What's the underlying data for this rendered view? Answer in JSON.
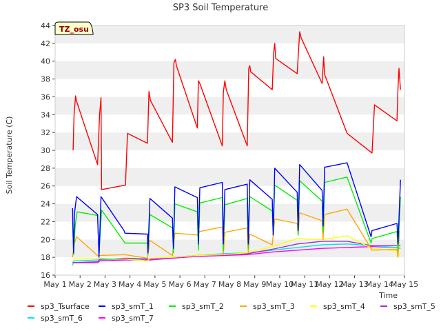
{
  "chart_data": {
    "type": "line",
    "title": "SP3 Soil Temperature",
    "xlabel": "Time",
    "ylabel": "Soil Temperature (C)",
    "xlim": [
      1,
      15
    ],
    "ylim": [
      16,
      44
    ],
    "x_ticks": [
      {
        "value": 1,
        "label": "May 1"
      },
      {
        "value": 2,
        "label": "May 2"
      },
      {
        "value": 3,
        "label": "May 3"
      },
      {
        "value": 4,
        "label": "May 4"
      },
      {
        "value": 5,
        "label": "May 5"
      },
      {
        "value": 6,
        "label": "May 6"
      },
      {
        "value": 7,
        "label": "May 7"
      },
      {
        "value": 8,
        "label": "May 8"
      },
      {
        "value": 9,
        "label": "May 9"
      },
      {
        "value": 10,
        "label": "May 10"
      },
      {
        "value": 11,
        "label": "May 11"
      },
      {
        "value": 12,
        "label": "May 12"
      },
      {
        "value": 13,
        "label": "May 13"
      },
      {
        "value": 14,
        "label": "May 14"
      },
      {
        "value": 15,
        "label": "May 15"
      }
    ],
    "y_ticks": [
      16,
      18,
      20,
      22,
      24,
      26,
      28,
      30,
      32,
      34,
      36,
      38,
      40,
      42,
      44
    ],
    "grid": "horizontal bands",
    "badge": "TZ_osu",
    "legend_position": "bottom",
    "series": [
      {
        "name": "sp3_Tsurface",
        "color": "#ff0000",
        "points": [
          [
            1.72,
            30.0
          ],
          [
            1.76,
            34.0
          ],
          [
            1.82,
            36.1
          ],
          [
            1.86,
            35.5
          ],
          [
            2.7,
            28.4
          ],
          [
            2.78,
            34.0
          ],
          [
            2.84,
            35.9
          ],
          [
            2.86,
            25.6
          ],
          [
            3.82,
            26.1
          ],
          [
            3.9,
            31.9
          ],
          [
            4.7,
            30.8
          ],
          [
            4.76,
            36.6
          ],
          [
            4.82,
            35.6
          ],
          [
            5.7,
            30.9
          ],
          [
            5.76,
            39.8
          ],
          [
            5.82,
            40.2
          ],
          [
            5.86,
            39.5
          ],
          [
            6.7,
            32.5
          ],
          [
            6.74,
            37.8
          ],
          [
            6.8,
            37.5
          ],
          [
            7.7,
            30.5
          ],
          [
            7.74,
            36.5
          ],
          [
            7.8,
            37.8
          ],
          [
            7.86,
            36.8
          ],
          [
            8.7,
            30.5
          ],
          [
            8.76,
            39.2
          ],
          [
            8.8,
            39.5
          ],
          [
            8.84,
            38.8
          ],
          [
            9.7,
            36.8
          ],
          [
            9.76,
            41.0
          ],
          [
            9.8,
            42.0
          ],
          [
            9.84,
            40.3
          ],
          [
            10.7,
            38.6
          ],
          [
            10.76,
            41.5
          ],
          [
            10.8,
            43.3
          ],
          [
            10.86,
            42.6
          ],
          [
            11.7,
            37.5
          ],
          [
            11.76,
            40.5
          ],
          [
            11.8,
            38.5
          ],
          [
            12.7,
            31.9
          ],
          [
            13.7,
            29.7
          ],
          [
            13.8,
            35.1
          ],
          [
            14.7,
            33.3
          ],
          [
            14.74,
            37.0
          ],
          [
            14.78,
            39.2
          ],
          [
            14.84,
            36.8
          ]
        ]
      },
      {
        "name": "sp3_smT_1",
        "color": "#0000ff",
        "points": [
          [
            1.7,
            23.5
          ],
          [
            1.74,
            18.5
          ],
          [
            1.78,
            23.0
          ],
          [
            1.86,
            24.8
          ],
          [
            2.7,
            22.8
          ],
          [
            2.76,
            18.0
          ],
          [
            2.84,
            24.8
          ],
          [
            3.76,
            21.0
          ],
          [
            3.8,
            20.7
          ],
          [
            4.7,
            20.6
          ],
          [
            4.72,
            18.5
          ],
          [
            4.8,
            24.6
          ],
          [
            5.7,
            22.4
          ],
          [
            5.74,
            19.0
          ],
          [
            5.8,
            25.9
          ],
          [
            6.7,
            24.7
          ],
          [
            6.74,
            19.5
          ],
          [
            6.8,
            25.8
          ],
          [
            7.7,
            26.4
          ],
          [
            7.74,
            19.5
          ],
          [
            7.8,
            25.6
          ],
          [
            8.7,
            26.2
          ],
          [
            8.74,
            19.5
          ],
          [
            8.8,
            26.7
          ],
          [
            9.7,
            24.5
          ],
          [
            9.74,
            20.5
          ],
          [
            9.8,
            28.0
          ],
          [
            10.7,
            25.3
          ],
          [
            10.74,
            21.0
          ],
          [
            10.8,
            28.4
          ],
          [
            11.7,
            25.5
          ],
          [
            11.74,
            21.5
          ],
          [
            11.8,
            28.1
          ],
          [
            12.7,
            28.6
          ],
          [
            13.66,
            20.3
          ],
          [
            13.7,
            21.0
          ],
          [
            14.7,
            21.8
          ],
          [
            14.74,
            19.5
          ],
          [
            14.84,
            26.7
          ]
        ]
      },
      {
        "name": "sp3_smT_2",
        "color": "#00ee00",
        "points": [
          [
            1.7,
            22.0
          ],
          [
            1.74,
            18.3
          ],
          [
            1.8,
            21.5
          ],
          [
            1.88,
            23.1
          ],
          [
            2.7,
            22.7
          ],
          [
            2.76,
            18.3
          ],
          [
            2.86,
            23.3
          ],
          [
            3.8,
            19.6
          ],
          [
            4.7,
            19.6
          ],
          [
            4.72,
            18.3
          ],
          [
            4.8,
            22.8
          ],
          [
            5.7,
            21.3
          ],
          [
            5.74,
            18.5
          ],
          [
            5.8,
            24.0
          ],
          [
            6.7,
            23.1
          ],
          [
            6.74,
            18.8
          ],
          [
            6.8,
            24.1
          ],
          [
            7.7,
            24.7
          ],
          [
            7.74,
            18.8
          ],
          [
            7.8,
            23.9
          ],
          [
            8.7,
            24.6
          ],
          [
            8.74,
            19.0
          ],
          [
            8.8,
            24.8
          ],
          [
            9.7,
            23.2
          ],
          [
            9.74,
            20.5
          ],
          [
            9.8,
            26.1
          ],
          [
            10.7,
            24.4
          ],
          [
            10.74,
            20.5
          ],
          [
            10.8,
            26.6
          ],
          [
            11.7,
            24.3
          ],
          [
            11.74,
            20.8
          ],
          [
            11.8,
            26.4
          ],
          [
            12.7,
            27.0
          ],
          [
            13.66,
            19.6
          ],
          [
            13.7,
            20.1
          ],
          [
            14.7,
            20.9
          ],
          [
            14.74,
            18.8
          ],
          [
            14.84,
            24.8
          ]
        ]
      },
      {
        "name": "sp3_smT_3",
        "color": "#ffa500",
        "points": [
          [
            1.7,
            18.0
          ],
          [
            1.76,
            19.5
          ],
          [
            1.86,
            20.3
          ],
          [
            2.7,
            18.2
          ],
          [
            3.8,
            18.3
          ],
          [
            4.7,
            17.9
          ],
          [
            4.8,
            19.9
          ],
          [
            5.7,
            18.2
          ],
          [
            5.8,
            20.7
          ],
          [
            6.7,
            20.5
          ],
          [
            6.8,
            20.9
          ],
          [
            7.7,
            21.4
          ],
          [
            7.74,
            18.3
          ],
          [
            7.8,
            20.8
          ],
          [
            8.7,
            21.3
          ],
          [
            8.74,
            18.5
          ],
          [
            8.8,
            20.6
          ],
          [
            9.7,
            19.4
          ],
          [
            9.8,
            22.3
          ],
          [
            10.7,
            21.8
          ],
          [
            10.74,
            20.5
          ],
          [
            10.8,
            23.0
          ],
          [
            11.7,
            22.1
          ],
          [
            11.74,
            20.0
          ],
          [
            11.8,
            22.8
          ],
          [
            12.7,
            23.4
          ],
          [
            13.7,
            18.8
          ],
          [
            14.7,
            18.9
          ],
          [
            14.74,
            18.0
          ],
          [
            14.8,
            21.0
          ]
        ]
      },
      {
        "name": "sp3_smT_4",
        "color": "#ffff00",
        "points": [
          [
            1.7,
            17.5
          ],
          [
            1.8,
            17.9
          ],
          [
            2.8,
            17.9
          ],
          [
            3.8,
            17.8
          ],
          [
            4.7,
            17.6
          ],
          [
            4.8,
            17.9
          ],
          [
            5.7,
            18.0
          ],
          [
            6.7,
            18.2
          ],
          [
            7.7,
            18.3
          ],
          [
            8.7,
            18.5
          ],
          [
            9.7,
            19.2
          ],
          [
            10.7,
            20.1
          ],
          [
            11.7,
            20.0
          ],
          [
            12.7,
            20.4
          ],
          [
            13.7,
            19.0
          ],
          [
            14.7,
            18.7
          ],
          [
            14.76,
            18.2
          ],
          [
            14.84,
            18.5
          ]
        ]
      },
      {
        "name": "sp3_smT_5",
        "color": "#9932cc",
        "points": [
          [
            1.7,
            17.4
          ],
          [
            2.7,
            17.5
          ],
          [
            2.8,
            17.8
          ],
          [
            3.8,
            17.9
          ],
          [
            4.8,
            17.8
          ],
          [
            5.7,
            18.0
          ],
          [
            6.7,
            18.2
          ],
          [
            7.7,
            18.3
          ],
          [
            8.7,
            18.4
          ],
          [
            9.7,
            18.9
          ],
          [
            10.7,
            19.5
          ],
          [
            11.7,
            19.8
          ],
          [
            12.7,
            19.8
          ],
          [
            13.7,
            19.3
          ],
          [
            14.7,
            19.3
          ],
          [
            14.84,
            19.3
          ]
        ]
      },
      {
        "name": "sp3_smT_6",
        "color": "#00e5ee",
        "points": [
          [
            1.7,
            17.1
          ],
          [
            1.76,
            17.6
          ],
          [
            2.7,
            17.7
          ],
          [
            3.8,
            17.8
          ],
          [
            4.8,
            17.8
          ],
          [
            5.7,
            18.0
          ],
          [
            6.7,
            18.2
          ],
          [
            7.7,
            18.4
          ],
          [
            8.7,
            18.5
          ],
          [
            9.7,
            18.8
          ],
          [
            10.7,
            19.1
          ],
          [
            11.7,
            19.4
          ],
          [
            12.7,
            19.5
          ],
          [
            13.7,
            19.3
          ],
          [
            14.7,
            19.1
          ],
          [
            14.84,
            19.0
          ]
        ]
      },
      {
        "name": "sp3_smT_7",
        "color": "#ff00ff",
        "points": [
          [
            1.7,
            17.4
          ],
          [
            2.7,
            17.4
          ],
          [
            2.8,
            17.6
          ],
          [
            3.8,
            17.7
          ],
          [
            4.8,
            17.7
          ],
          [
            5.7,
            17.9
          ],
          [
            6.7,
            18.1
          ],
          [
            7.7,
            18.2
          ],
          [
            8.7,
            18.3
          ],
          [
            9.7,
            18.6
          ],
          [
            10.7,
            18.8
          ],
          [
            11.7,
            19.0
          ],
          [
            12.7,
            19.1
          ],
          [
            13.7,
            19.2
          ],
          [
            14.7,
            19.1
          ],
          [
            14.84,
            19.0
          ]
        ]
      }
    ]
  }
}
